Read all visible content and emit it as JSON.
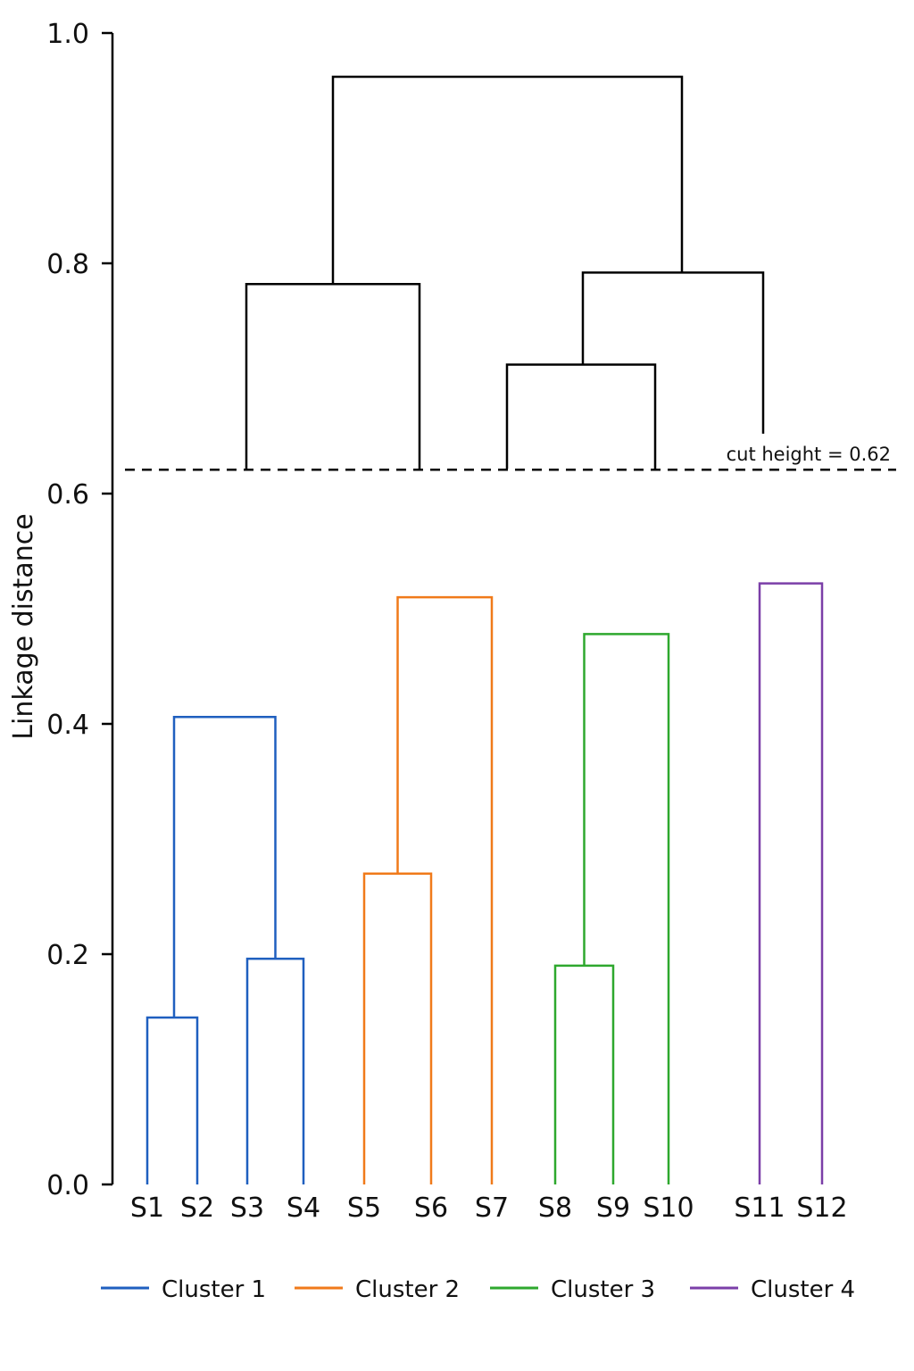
{
  "chart_data": {
    "type": "dendrogram",
    "ylabel": "Linkage distance",
    "ylim": [
      0,
      1.0
    ],
    "yticks": [
      0.0,
      0.2,
      0.4,
      0.6,
      0.8,
      1.0
    ],
    "ytick_labels": [
      "0.0",
      "0.2",
      "0.4",
      "0.6",
      "0.8",
      "1.0"
    ],
    "leaves": [
      "S1",
      "S2",
      "S3",
      "S4",
      "S5",
      "S6",
      "S7",
      "S8",
      "S9",
      "S10",
      "S11",
      "S12"
    ],
    "merges": [
      {
        "children": [
          "S1",
          "S2"
        ],
        "height": 0.145,
        "cluster": "Cluster 1"
      },
      {
        "children": [
          "S3",
          "S4"
        ],
        "height": 0.196,
        "cluster": "Cluster 1"
      },
      {
        "children": [
          "S1+S2",
          "S3+S4"
        ],
        "height": 0.406,
        "cluster": "Cluster 1"
      },
      {
        "children": [
          "S5",
          "S6"
        ],
        "height": 0.27,
        "cluster": "Cluster 2"
      },
      {
        "children": [
          "S5+S6",
          "S7"
        ],
        "height": 0.51,
        "cluster": "Cluster 2"
      },
      {
        "children": [
          "S8",
          "S9"
        ],
        "height": 0.19,
        "cluster": "Cluster 3"
      },
      {
        "children": [
          "S8+S9",
          "S10"
        ],
        "height": 0.478,
        "cluster": "Cluster 3"
      },
      {
        "children": [
          "S11",
          "S12"
        ],
        "height": 0.522,
        "cluster": "Cluster 4"
      },
      {
        "children": [
          "Cluster 1",
          "Cluster 2"
        ],
        "height": 0.782,
        "cluster": null
      },
      {
        "children": [
          "Cluster 2",
          "Cluster 3"
        ],
        "height": 0.712,
        "cluster": null
      },
      {
        "children": [
          "Cluster 2+3",
          "Cluster 4"
        ],
        "height": 0.792,
        "cluster": null
      },
      {
        "children": [
          "Cluster 1+2",
          "Cluster 2+3+4"
        ],
        "height": 0.962,
        "cluster": null
      }
    ],
    "cut_height": 0.62,
    "cut_label": "cut height = 0.62",
    "legend": {
      "placement": "bottom",
      "entries": [
        {
          "name": "Cluster 1",
          "color": "#1f5fbf"
        },
        {
          "name": "Cluster 2",
          "color": "#f07a1a"
        },
        {
          "name": "Cluster 3",
          "color": "#2ea82e"
        },
        {
          "name": "Cluster 4",
          "color": "#7b3fa8"
        }
      ]
    },
    "link_color": "#000000"
  }
}
